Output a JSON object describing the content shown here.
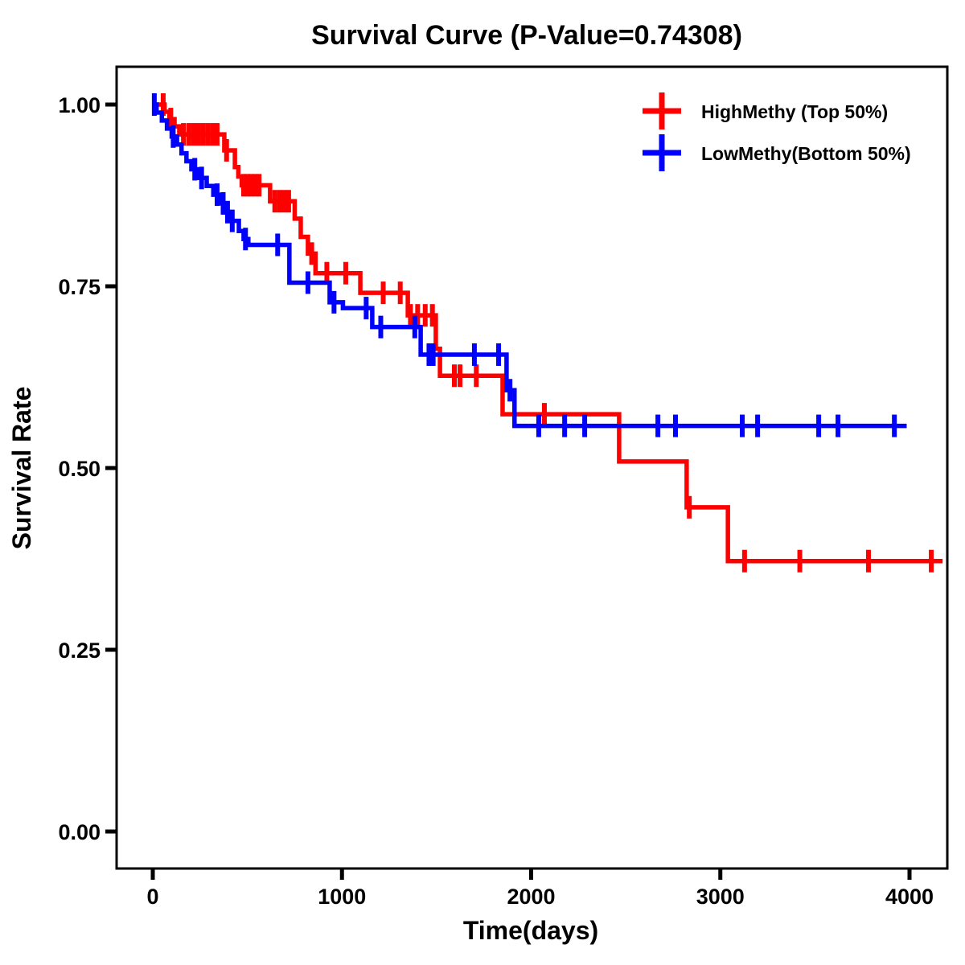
{
  "title": "Survival Curve (P-Value=0.74308)",
  "colors": {
    "high_methy": "#ff0000",
    "low_methy": "#0000ff",
    "axis": "#000000",
    "background": "#ffffff"
  },
  "legend": {
    "position": "top-right",
    "items": [
      {
        "label": "HighMethy (Top 50%)",
        "color": "#ff0000",
        "symbol": "plus-cross"
      },
      {
        "label": "LowMethy(Bottom 50%)",
        "color": "#0000ff",
        "symbol": "plus-cross"
      }
    ]
  },
  "chart_data": {
    "type": "line",
    "subtype": "kaplan-meier-step-survival",
    "title": "Survival Curve (P-Value=0.74308)",
    "p_value_shown": "0.74308",
    "xlabel": "Time(days)",
    "ylabel": "Survival Rate",
    "xlim": [
      0,
      4200
    ],
    "ylim": [
      0.0,
      1.05
    ],
    "x_ticks": [
      0,
      1000,
      2000,
      3000,
      4000
    ],
    "y_ticks": [
      0.0,
      0.25,
      0.5,
      0.75,
      1.0
    ],
    "grid": false,
    "legend_position": "top-right",
    "series": [
      {
        "name": "HighMethy (Top 50%)",
        "color": "#ff0000",
        "end_time": 4175,
        "steps": [
          [
            0,
            1.0
          ],
          [
            62,
            0.99
          ],
          [
            88,
            0.98
          ],
          [
            115,
            0.97
          ],
          [
            140,
            0.959
          ],
          [
            378,
            0.937
          ],
          [
            434,
            0.914
          ],
          [
            452,
            0.901
          ],
          [
            470,
            0.889
          ],
          [
            620,
            0.867
          ],
          [
            750,
            0.843
          ],
          [
            782,
            0.818
          ],
          [
            820,
            0.795
          ],
          [
            860,
            0.768
          ],
          [
            1097,
            0.741
          ],
          [
            1348,
            0.71
          ],
          [
            1496,
            0.664
          ],
          [
            1518,
            0.627
          ],
          [
            1849,
            0.574
          ],
          [
            2465,
            0.509
          ],
          [
            2822,
            0.446
          ],
          [
            3040,
            0.372
          ]
        ],
        "censors": [
          [
            55,
            1.0
          ],
          [
            95,
            0.98
          ],
          [
            162,
            0.959
          ],
          [
            190,
            0.959
          ],
          [
            215,
            0.959
          ],
          [
            240,
            0.959
          ],
          [
            265,
            0.959
          ],
          [
            290,
            0.959
          ],
          [
            315,
            0.959
          ],
          [
            340,
            0.959
          ],
          [
            390,
            0.937
          ],
          [
            480,
            0.889
          ],
          [
            500,
            0.889
          ],
          [
            520,
            0.889
          ],
          [
            542,
            0.889
          ],
          [
            562,
            0.889
          ],
          [
            645,
            0.867
          ],
          [
            670,
            0.867
          ],
          [
            695,
            0.867
          ],
          [
            718,
            0.867
          ],
          [
            840,
            0.795
          ],
          [
            920,
            0.768
          ],
          [
            1020,
            0.768
          ],
          [
            1218,
            0.741
          ],
          [
            1308,
            0.741
          ],
          [
            1362,
            0.71
          ],
          [
            1400,
            0.71
          ],
          [
            1440,
            0.71
          ],
          [
            1478,
            0.71
          ],
          [
            1594,
            0.627
          ],
          [
            1624,
            0.627
          ],
          [
            1710,
            0.627
          ],
          [
            2070,
            0.574
          ],
          [
            2836,
            0.446
          ],
          [
            3128,
            0.372
          ],
          [
            3420,
            0.372
          ],
          [
            3783,
            0.372
          ],
          [
            4115,
            0.372
          ]
        ]
      },
      {
        "name": "LowMethy(Bottom 50%)",
        "color": "#0000ff",
        "end_time": 3985,
        "steps": [
          [
            0,
            1.0
          ],
          [
            20,
            0.989
          ],
          [
            48,
            0.978
          ],
          [
            75,
            0.967
          ],
          [
            100,
            0.956
          ],
          [
            128,
            0.945
          ],
          [
            152,
            0.933
          ],
          [
            178,
            0.922
          ],
          [
            204,
            0.911
          ],
          [
            240,
            0.899
          ],
          [
            285,
            0.888
          ],
          [
            320,
            0.876
          ],
          [
            355,
            0.864
          ],
          [
            385,
            0.852
          ],
          [
            400,
            0.84
          ],
          [
            455,
            0.826
          ],
          [
            480,
            0.815
          ],
          [
            505,
            0.807
          ],
          [
            722,
            0.755
          ],
          [
            935,
            0.728
          ],
          [
            1005,
            0.72
          ],
          [
            1160,
            0.694
          ],
          [
            1416,
            0.656
          ],
          [
            1870,
            0.607
          ],
          [
            1912,
            0.558
          ]
        ],
        "censors": [
          [
            8,
            1.0
          ],
          [
            108,
            0.956
          ],
          [
            222,
            0.911
          ],
          [
            258,
            0.899
          ],
          [
            340,
            0.876
          ],
          [
            372,
            0.864
          ],
          [
            395,
            0.852
          ],
          [
            420,
            0.84
          ],
          [
            490,
            0.815
          ],
          [
            660,
            0.807
          ],
          [
            820,
            0.755
          ],
          [
            958,
            0.728
          ],
          [
            1128,
            0.72
          ],
          [
            1205,
            0.694
          ],
          [
            1385,
            0.694
          ],
          [
            1460,
            0.656
          ],
          [
            1482,
            0.656
          ],
          [
            1700,
            0.656
          ],
          [
            1828,
            0.656
          ],
          [
            1888,
            0.607
          ],
          [
            2040,
            0.558
          ],
          [
            2177,
            0.558
          ],
          [
            2283,
            0.558
          ],
          [
            2670,
            0.558
          ],
          [
            2763,
            0.558
          ],
          [
            3116,
            0.558
          ],
          [
            3197,
            0.558
          ],
          [
            3520,
            0.558
          ],
          [
            3622,
            0.558
          ],
          [
            3920,
            0.558
          ]
        ]
      }
    ]
  }
}
